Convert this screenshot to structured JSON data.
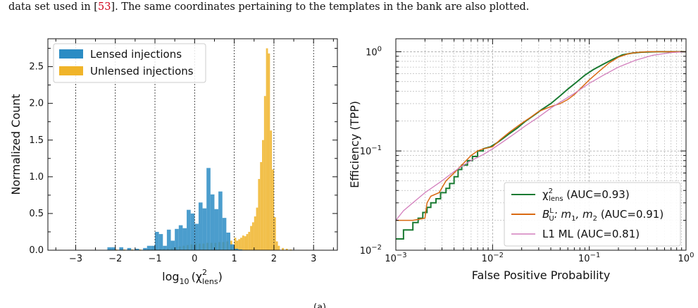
{
  "caption": {
    "prefix": "data set used in  [",
    "ref": "53",
    "suffix": "]. The same coordinates pertaining to the templates in the bank are also plotted."
  },
  "bottom_fragment": "(a)",
  "chart_data": [
    {
      "type": "bar",
      "subtype": "histogram",
      "xlabel_main": "log",
      "xlabel_sub": "10",
      "xlabel_paren_open": "(χ",
      "xlabel_sup": "2",
      "xlabel_sub2": "lens",
      "xlabel_paren_close": ")",
      "ylabel": "Normalized Count",
      "xlim": [
        -3.7,
        3.6
      ],
      "ylim": [
        0,
        2.88
      ],
      "xticks": [
        -3,
        -2,
        -1,
        0,
        1,
        2,
        3
      ],
      "xtick_labels": [
        "−3",
        "−2",
        "−1",
        "0",
        "1",
        "2",
        "3"
      ],
      "yticks": [
        0.0,
        0.5,
        1.0,
        1.5,
        2.0,
        2.5
      ],
      "ytick_labels": [
        "0.0",
        "0.5",
        "1.0",
        "1.5",
        "2.0",
        "2.5"
      ],
      "vlines": [
        -3,
        -2,
        -1,
        0,
        1,
        2,
        3
      ],
      "legend_position": "top-left",
      "bin_width": 0.1,
      "series": [
        {
          "name": "Lensed injections",
          "color": "#2b8cc4",
          "bins": [
            [
              -2.2,
              0.04
            ],
            [
              -2.1,
              0.04
            ],
            [
              -1.9,
              0.04
            ],
            [
              -1.7,
              0.03
            ],
            [
              -1.5,
              0.02
            ],
            [
              -1.3,
              0.03
            ],
            [
              -1.2,
              0.06
            ],
            [
              -1.1,
              0.06
            ],
            [
              -1.0,
              0.25
            ],
            [
              -0.9,
              0.22
            ],
            [
              -0.8,
              0.06
            ],
            [
              -0.7,
              0.28
            ],
            [
              -0.6,
              0.13
            ],
            [
              -0.5,
              0.29
            ],
            [
              -0.4,
              0.34
            ],
            [
              -0.3,
              0.3
            ],
            [
              -0.2,
              0.55
            ],
            [
              -0.1,
              0.5
            ],
            [
              0.0,
              0.36
            ],
            [
              0.1,
              0.65
            ],
            [
              0.2,
              0.57
            ],
            [
              0.3,
              1.12
            ],
            [
              0.4,
              0.76
            ],
            [
              0.5,
              0.56
            ],
            [
              0.6,
              0.8
            ],
            [
              0.7,
              0.44
            ],
            [
              0.8,
              0.24
            ],
            [
              0.9,
              0.08
            ],
            [
              1.0,
              0.02
            ],
            [
              1.1,
              0.01
            ]
          ]
        },
        {
          "name": "Unlensed injections",
          "color": "#f0b429",
          "bins": [
            [
              -3.8,
              0.005
            ],
            [
              -3.6,
              0.005
            ],
            [
              -3.4,
              0.005
            ],
            [
              -3.2,
              0.005
            ],
            [
              -3.0,
              0.005
            ],
            [
              -2.8,
              0.005
            ],
            [
              -2.6,
              0.005
            ],
            [
              -2.4,
              0.005
            ],
            [
              -2.2,
              0.005
            ],
            [
              -2.0,
              0.01
            ],
            [
              -1.8,
              0.01
            ],
            [
              -1.6,
              0.01
            ],
            [
              -1.4,
              0.01
            ],
            [
              -1.2,
              0.01
            ],
            [
              -1.1,
              0.015
            ],
            [
              -1.0,
              0.02
            ],
            [
              -0.9,
              0.02
            ],
            [
              -0.8,
              0.02
            ],
            [
              -0.7,
              0.025
            ],
            [
              -0.6,
              0.03
            ],
            [
              -0.5,
              0.04
            ],
            [
              -0.4,
              0.05
            ],
            [
              -0.3,
              0.06
            ],
            [
              -0.2,
              0.07
            ],
            [
              -0.1,
              0.08
            ],
            [
              0.0,
              0.09
            ],
            [
              0.1,
              0.09
            ],
            [
              0.2,
              0.09
            ],
            [
              0.3,
              0.1
            ],
            [
              0.4,
              0.1
            ],
            [
              0.5,
              0.1
            ],
            [
              0.6,
              0.11
            ],
            [
              0.7,
              0.11
            ],
            [
              0.8,
              0.12
            ],
            [
              0.9,
              0.13
            ],
            [
              1.0,
              0.17
            ],
            [
              1.05,
              0.13
            ],
            [
              1.1,
              0.15
            ],
            [
              1.15,
              0.17
            ],
            [
              1.2,
              0.2
            ],
            [
              1.25,
              0.19
            ],
            [
              1.3,
              0.22
            ],
            [
              1.35,
              0.25
            ],
            [
              1.4,
              0.33
            ],
            [
              1.45,
              0.38
            ],
            [
              1.5,
              0.46
            ],
            [
              1.55,
              0.58
            ],
            [
              1.6,
              0.97
            ],
            [
              1.65,
              1.2
            ],
            [
              1.7,
              1.5
            ],
            [
              1.75,
              2.1
            ],
            [
              1.8,
              2.75
            ],
            [
              1.85,
              2.68
            ],
            [
              1.9,
              1.63
            ],
            [
              1.95,
              1.1
            ],
            [
              2.0,
              0.45
            ],
            [
              2.05,
              0.12
            ],
            [
              2.1,
              0.06
            ],
            [
              2.2,
              0.03
            ],
            [
              2.3,
              0.02
            ],
            [
              2.4,
              0.01
            ],
            [
              2.6,
              0.005
            ],
            [
              2.8,
              0.005
            ],
            [
              3.0,
              0.005
            ],
            [
              3.2,
              0.005
            ],
            [
              3.4,
              0.005
            ]
          ]
        }
      ]
    },
    {
      "type": "line",
      "xscale": "log",
      "yscale": "log",
      "xlabel": "False Positive Probability",
      "ylabel": "Efficiency (TPP)",
      "xlim": [
        0.001,
        1
      ],
      "ylim": [
        0.01,
        1.35
      ],
      "xticks": [
        0.001,
        0.01,
        0.1,
        1
      ],
      "xtick_labels": [
        {
          "base": "10",
          "exp": "−3"
        },
        {
          "base": "10",
          "exp": "−2"
        },
        {
          "base": "10",
          "exp": "−1"
        },
        {
          "base": "10",
          "exp": "0"
        }
      ],
      "yticks": [
        0.01,
        0.1,
        1
      ],
      "ytick_labels": [
        {
          "base": "10",
          "exp": "−2"
        },
        {
          "base": "10",
          "exp": "−1"
        },
        {
          "base": "10",
          "exp": "0"
        }
      ],
      "grid": true,
      "legend_position": "bottom-right",
      "series": [
        {
          "name": "χ²lens (AUC=0.93)",
          "label_main": "χ",
          "label_sup": "2",
          "label_sub": "lens",
          "label_rest": " (AUC=0.93)",
          "color": "#1a7a32",
          "step": true,
          "points": [
            [
              0.001,
              0.013
            ],
            [
              0.0012,
              0.013
            ],
            [
              0.0012,
              0.016
            ],
            [
              0.0015,
              0.016
            ],
            [
              0.0015,
              0.019
            ],
            [
              0.0017,
              0.019
            ],
            [
              0.0017,
              0.021
            ],
            [
              0.0019,
              0.021
            ],
            [
              0.0019,
              0.024
            ],
            [
              0.0021,
              0.024
            ],
            [
              0.0021,
              0.027
            ],
            [
              0.0023,
              0.027
            ],
            [
              0.0023,
              0.03
            ],
            [
              0.0026,
              0.03
            ],
            [
              0.0026,
              0.033
            ],
            [
              0.0029,
              0.033
            ],
            [
              0.0029,
              0.038
            ],
            [
              0.0033,
              0.038
            ],
            [
              0.0033,
              0.042
            ],
            [
              0.0036,
              0.042
            ],
            [
              0.0036,
              0.047
            ],
            [
              0.004,
              0.047
            ],
            [
              0.004,
              0.055
            ],
            [
              0.0044,
              0.055
            ],
            [
              0.0044,
              0.065
            ],
            [
              0.0048,
              0.065
            ],
            [
              0.0048,
              0.072
            ],
            [
              0.0055,
              0.072
            ],
            [
              0.0055,
              0.08
            ],
            [
              0.0062,
              0.08
            ],
            [
              0.0062,
              0.088
            ],
            [
              0.007,
              0.088
            ],
            [
              0.007,
              0.1
            ],
            [
              0.008,
              0.1
            ],
            [
              0.008,
              0.105
            ],
            [
              0.0095,
              0.11
            ],
            [
              0.011,
              0.12
            ],
            [
              0.013,
              0.135
            ],
            [
              0.015,
              0.15
            ],
            [
              0.018,
              0.17
            ],
            [
              0.022,
              0.2
            ],
            [
              0.027,
              0.23
            ],
            [
              0.032,
              0.26
            ],
            [
              0.04,
              0.3
            ],
            [
              0.05,
              0.36
            ],
            [
              0.06,
              0.42
            ],
            [
              0.075,
              0.5
            ],
            [
              0.09,
              0.58
            ],
            [
              0.11,
              0.66
            ],
            [
              0.14,
              0.75
            ],
            [
              0.18,
              0.85
            ],
            [
              0.22,
              0.93
            ],
            [
              0.28,
              0.97
            ],
            [
              0.35,
              0.99
            ],
            [
              0.5,
              1.0
            ],
            [
              1.0,
              1.0
            ]
          ]
        },
        {
          "name": "B¹U : m1, m2 (AUC=0.91)",
          "label_main": "B",
          "label_sup": "L",
          "label_sub": "U",
          "label_rest": ": m",
          "label_sub_m1": "1",
          "label_mid": ", m",
          "label_sub_m2": "2",
          "label_tail": " (AUC=0.91)",
          "color": "#d96a12",
          "step": false,
          "points": [
            [
              0.001,
              0.02
            ],
            [
              0.0015,
              0.02
            ],
            [
              0.002,
              0.021
            ],
            [
              0.0021,
              0.03
            ],
            [
              0.0023,
              0.035
            ],
            [
              0.0028,
              0.038
            ],
            [
              0.0033,
              0.05
            ],
            [
              0.004,
              0.06
            ],
            [
              0.005,
              0.075
            ],
            [
              0.006,
              0.09
            ],
            [
              0.007,
              0.1
            ],
            [
              0.008,
              0.105
            ],
            [
              0.01,
              0.11
            ],
            [
              0.012,
              0.13
            ],
            [
              0.015,
              0.155
            ],
            [
              0.02,
              0.19
            ],
            [
              0.025,
              0.22
            ],
            [
              0.03,
              0.25
            ],
            [
              0.04,
              0.28
            ],
            [
              0.05,
              0.3
            ],
            [
              0.06,
              0.33
            ],
            [
              0.07,
              0.37
            ],
            [
              0.08,
              0.42
            ],
            [
              0.1,
              0.52
            ],
            [
              0.13,
              0.65
            ],
            [
              0.16,
              0.77
            ],
            [
              0.2,
              0.88
            ],
            [
              0.25,
              0.95
            ],
            [
              0.3,
              0.98
            ],
            [
              0.4,
              1.0
            ],
            [
              1.0,
              1.0
            ]
          ]
        },
        {
          "name": "L1 ML (AUC=0.81)",
          "label_main": "L1 ML (AUC=0.81)",
          "color": "#d37fbd",
          "step": false,
          "points": [
            [
              0.001,
              0.02
            ],
            [
              0.0012,
              0.025
            ],
            [
              0.0015,
              0.03
            ],
            [
              0.002,
              0.038
            ],
            [
              0.003,
              0.05
            ],
            [
              0.004,
              0.062
            ],
            [
              0.005,
              0.072
            ],
            [
              0.006,
              0.08
            ],
            [
              0.008,
              0.092
            ],
            [
              0.01,
              0.105
            ],
            [
              0.013,
              0.125
            ],
            [
              0.017,
              0.15
            ],
            [
              0.022,
              0.18
            ],
            [
              0.03,
              0.22
            ],
            [
              0.04,
              0.27
            ],
            [
              0.05,
              0.31
            ],
            [
              0.07,
              0.38
            ],
            [
              0.1,
              0.48
            ],
            [
              0.14,
              0.58
            ],
            [
              0.2,
              0.7
            ],
            [
              0.3,
              0.82
            ],
            [
              0.45,
              0.92
            ],
            [
              0.7,
              0.98
            ],
            [
              1.0,
              1.0
            ]
          ]
        }
      ]
    }
  ]
}
